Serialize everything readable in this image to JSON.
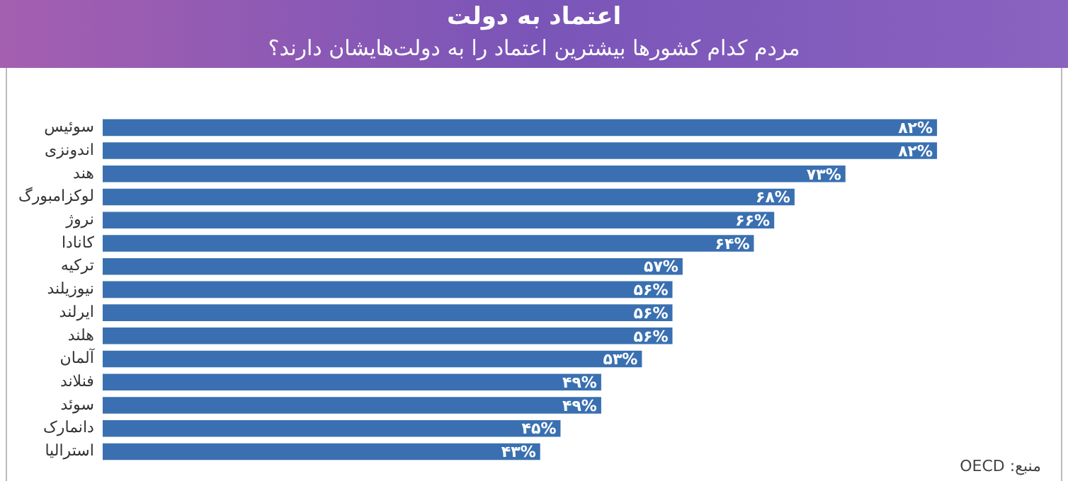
{
  "chart_data": {
    "type": "bar",
    "orientation": "horizontal",
    "title": "اعتماد به دولت",
    "subtitle": "مردم کدام کشورها بیشترین اعتماد را به دولت‌هایشان دارند؟",
    "categories": [
      "سوئیس",
      "اندونزی",
      "هند",
      "لوکزامبورگ",
      "نروژ",
      "کانادا",
      "ترکیه",
      "نیوزیلند",
      "ایرلند",
      "هلند",
      "آلمان",
      "فنلاند",
      "سوئد",
      "دانمارک",
      "استرالیا"
    ],
    "values": [
      82,
      82,
      73,
      68,
      66,
      64,
      57,
      56,
      56,
      56,
      53,
      49,
      49,
      45,
      43
    ],
    "value_labels": [
      "۸۲%",
      "۸۲%",
      "۷۳%",
      "۶۸%",
      "۶۶%",
      "۶۴%",
      "۵۷%",
      "۵۶%",
      "۵۶%",
      "۵۶%",
      "۵۳%",
      "۴۹%",
      "۴۹%",
      "۴۵%",
      "۴۳%"
    ],
    "color": "#3a70b1",
    "tick_labels": "y",
    "grid": false,
    "legend": false,
    "annotations": [
      "منبع: OECD"
    ]
  }
}
